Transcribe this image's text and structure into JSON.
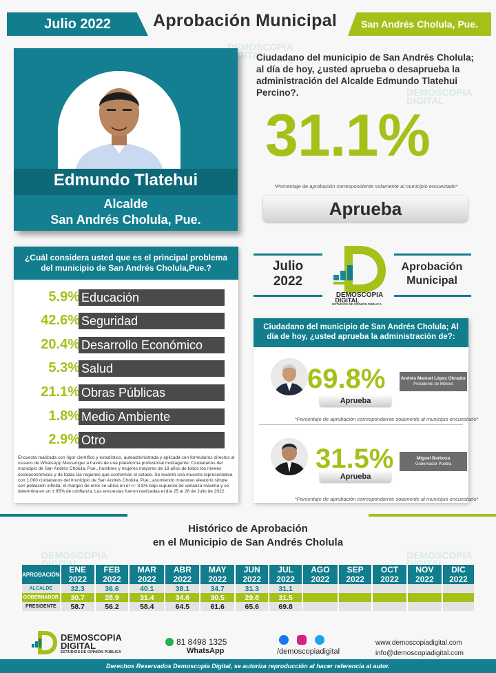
{
  "header": {
    "month": "Julio 2022",
    "title": "Aprobación Municipal",
    "location": "San Andrés Cholula, Pue."
  },
  "profile": {
    "name": "Edmundo Tlatehui",
    "role": "Alcalde",
    "municipality": "San Andrés Cholula, Pue."
  },
  "main_question": "Ciudadano del municipio de San Andrés Cholula; al día de hoy, ¿usted aprueba o desaprueba la administración del Alcalde Edmundo Tlatehui Percino?.",
  "main_result": {
    "value": "31.1%",
    "note": "*Porcentaje de aprobación correspondiente solamente al municipio encuestado*",
    "label": "Aprueba"
  },
  "problems": {
    "question": "¿Cuál considera usted que es el principal problema del municipio de San Andrés Cholula,Pue.?",
    "items": [
      {
        "pct": "5.9%",
        "label": "Educación"
      },
      {
        "pct": "42.6%",
        "label": "Seguridad"
      },
      {
        "pct": "20.4%",
        "label": "Desarrollo Económico"
      },
      {
        "pct": "5.3%",
        "label": "Salud"
      },
      {
        "pct": "21.1%",
        "label": "Obras Públicas"
      },
      {
        "pct": "1.8%",
        "label": "Medio Ambiente"
      },
      {
        "pct": "2.9%",
        "label": "Otro"
      }
    ],
    "methodology": "Encuesta realizada con rigor científico y estadístico, autoadministrada y aplicada con formularios directos al usuario de WhatsApp Messenger a través de una plataforma profesional multiagente. Ciudadanos del municipio de San Andrés Cholula, Pue., hombres y mujeres mayores de 18 años de todos los niveles socioeconómicos y de todas las regiones que conforman el estado. Se levantó una muestra representativa con 1,000 ciudadanos del municipio de San Andrés Cholula, Pue., asumiendo muestreo aleatorio simple con población infinita, el margen de error se ubica en el +/- 3.8% bajo supuesto de varianza máxima y se determina en un ± 95% de confianza. Las encuestas fueron realizadas el día 25 al 28 de Julio de 2022."
  },
  "center": {
    "month": "Julio",
    "year": "2022",
    "brand_top": "DEMOSCOPIA",
    "brand_bottom": "DIGITAL",
    "brand_sub": "ESTUDIOS DE OPINIÓN PÚBLICA",
    "aprob_1": "Aprobación",
    "aprob_2": "Municipal"
  },
  "approval": {
    "question": "Ciudadano del municipio de San Andrés Cholula; Al día de hoy, ¿usted aprueba la administración de?:",
    "note": "*Porcentaje de aprobación correspondiente solamente al municipio encuestado*",
    "people": [
      {
        "pct": "69.8%",
        "label": "Aprueba",
        "name": "Andrés Manuel López Obrador",
        "position": "Presidente de México"
      },
      {
        "pct": "31.5%",
        "label": "Aprueba",
        "name": "Miguel Barbosa",
        "position": "Gobernador Puebla"
      }
    ]
  },
  "history": {
    "title_1": "Histórico de Aprobación",
    "title_2": "en el Municipio de San Andrés Cholula",
    "corner": "APROBACIÓN",
    "months": [
      "ENE 2022",
      "FEB 2022",
      "MAR 2022",
      "ABR 2022",
      "MAY 2022",
      "JUN 2022",
      "JUL 2022",
      "AGO 2022",
      "SEP 2022",
      "OCT 2022",
      "NOV 2022",
      "DIC 2022"
    ],
    "rows": [
      {
        "label": "ALCALDE",
        "values": [
          "32.3",
          "36.6",
          "40.1",
          "38.1",
          "34.7",
          "31.3",
          "31.1",
          "",
          "",
          "",
          "",
          ""
        ]
      },
      {
        "label": "GOBERNADOR",
        "values": [
          "30.7",
          "28.9",
          "31.4",
          "34.6",
          "30.5",
          "29.8",
          "31.5",
          "",
          "",
          "",
          "",
          ""
        ]
      },
      {
        "label": "PRESIDENTE",
        "values": [
          "58.7",
          "56.2",
          "58.4",
          "64.5",
          "61.6",
          "65.6",
          "69.8",
          "",
          "",
          "",
          "",
          ""
        ]
      }
    ]
  },
  "footer": {
    "brand_top": "DEMOSCOPIA",
    "brand_bottom": "DIGITAL",
    "brand_sub": "ESTUDIOS DE OPINIÓN PÚBLICA",
    "phone": "81 8498 1325",
    "whatsapp": "WhatsApp",
    "social": "/demoscopiadigital",
    "web": "www.demoscopiadigital.com",
    "email": "info@demoscopiadigital.com",
    "rights": "Derechos Reservados Demoscopia Digital, se autoriza reproducción al hacer referencia al autor."
  },
  "colors": {
    "teal": "#117d8d",
    "lime": "#a6c01a",
    "dark_bar": "#4a4a4a"
  }
}
